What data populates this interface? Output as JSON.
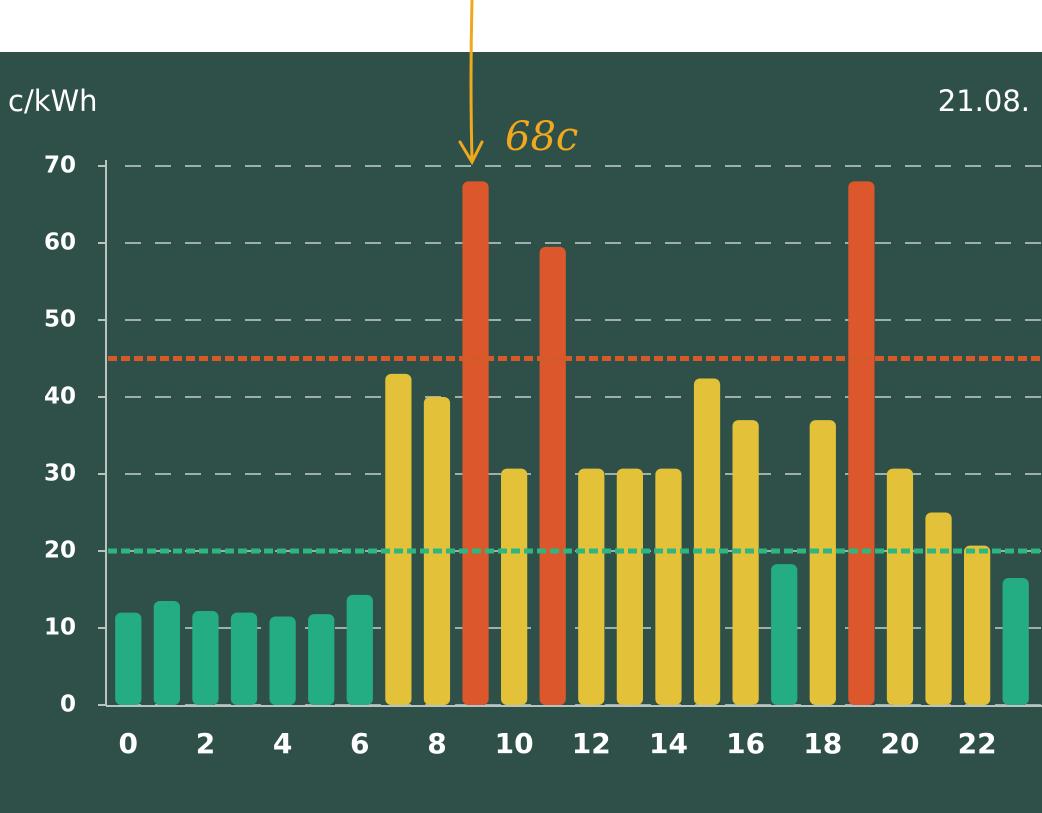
{
  "chart_data": {
    "type": "bar",
    "y_label": "c/kWh",
    "date": "21.08.",
    "annotation": "68c",
    "x": [
      0,
      1,
      2,
      3,
      4,
      5,
      6,
      7,
      8,
      9,
      10,
      11,
      12,
      13,
      14,
      15,
      16,
      17,
      18,
      19,
      20,
      21,
      22,
      23
    ],
    "values": [
      12,
      13.5,
      12.2,
      12,
      11.5,
      11.8,
      14.3,
      43,
      40,
      68,
      30.7,
      59.5,
      30.7,
      30.7,
      30.7,
      42.4,
      37,
      18.3,
      37,
      68,
      30.7,
      25,
      20.7,
      16.5
    ],
    "xlim": [
      -0.5,
      23.5
    ],
    "xticks": [
      0,
      2,
      4,
      6,
      8,
      10,
      12,
      14,
      16,
      18,
      20,
      22
    ],
    "ylim": [
      0,
      70
    ],
    "yticks": [
      0,
      10,
      20,
      30,
      40,
      50,
      60,
      70
    ],
    "grid": true,
    "thresholds": [
      {
        "value": 20,
        "color": "#2db67f"
      },
      {
        "value": 45,
        "color": "#d65a28"
      }
    ],
    "colors": [
      "#24ad82",
      "#e3c23a",
      "#dc572c"
    ]
  }
}
